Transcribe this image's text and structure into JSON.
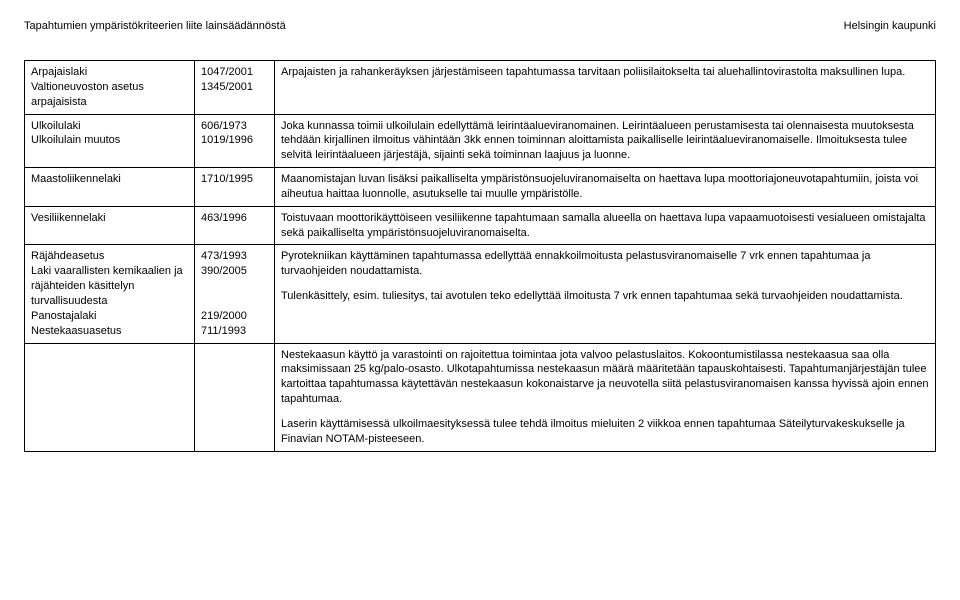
{
  "header": {
    "left": "Tapahtumien ympäristökriteerien liite lainsäädännöstä",
    "right": "Helsingin kaupunki"
  },
  "rows": [
    {
      "col1_lines": [
        "Arpajaislaki",
        "Valtioneuvoston asetus arpajaisista"
      ],
      "col2_lines": [
        "1047/2001",
        "1345/2001"
      ],
      "descs": [
        "Arpajaisten ja rahankeräyksen järjestämiseen tapahtumassa tarvitaan poliisilaitokselta tai aluehallintovirastolta maksullinen lupa."
      ]
    },
    {
      "col1_lines": [
        "Ulkoilulaki",
        "Ulkoilulain muutos"
      ],
      "col2_lines": [
        "606/1973",
        "1019/1996"
      ],
      "descs": [
        "Joka kunnassa toimii ulkoilulain edellyttämä leirintäalueviranomainen. Leirintäalueen perustamisesta tai olennaisesta muutoksesta tehdään kirjallinen ilmoitus vähintään 3kk ennen toiminnan aloittamista paikalliselle leirintäalueviranomaiselle. Ilmoituksesta tulee selvitä leirintäalueen järjestäjä, sijainti sekä toiminnan laajuus ja luonne."
      ]
    },
    {
      "col1_lines": [
        "Maastoliikennelaki"
      ],
      "col2_lines": [
        "1710/1995"
      ],
      "descs": [
        "Maanomistajan luvan lisäksi paikalliselta ympäristönsuojeluviranomaiselta on haettava lupa moottoriajoneuvotapahtumiin, joista voi aiheutua haittaa luonnolle, asutukselle tai muulle ympäristölle."
      ]
    },
    {
      "col1_lines": [
        "Vesiliikennelaki"
      ],
      "col2_lines": [
        "463/1996"
      ],
      "descs": [
        "Toistuvaan moottorikäyttöiseen vesiliikenne tapahtumaan samalla alueella on haettava lupa vapaamuotoisesti vesialueen omistajalta sekä paikalliselta ympäristönsuojeluviranomaiselta."
      ]
    },
    {
      "col1_lines": [
        "Räjähdeasetus",
        "Laki vaarallisten kemikaalien ja räjähteiden käsittelyn turvallisuudesta",
        "Panostajalaki",
        "Nestekaasuasetus"
      ],
      "col2_lines": [
        "473/1993",
        "390/2005",
        "",
        "",
        "219/2000",
        "711/1993"
      ],
      "descs": [
        "Pyrotekniikan käyttäminen tapahtumassa edellyttää ennakkoilmoitusta pelastusviranomaiselle 7 vrk ennen tapahtumaa ja turvaohjeiden noudattamista.",
        "Tulenkäsittely, esim. tuliesitys, tai avotulen teko edellyttää ilmoitusta 7 vrk ennen tapahtumaa sekä turvaohjeiden noudattamista."
      ]
    },
    {
      "col1_lines": [
        ""
      ],
      "col2_lines": [
        ""
      ],
      "descs": [
        "Nestekaasun käyttö ja varastointi on rajoitettua toimintaa jota valvoo pelastuslaitos. Kokoontumistilassa nestekaasua saa olla maksimissaan 25 kg/palo-osasto. Ulkotapahtumissa nestekaasun määrä määritetään tapauskohtaisesti. Tapahtumanjärjestäjän tulee kartoittaa tapahtumassa käytettävän nestekaasun kokonaistarve ja neuvotella siitä pelastusviranomaisen kanssa hyvissä ajoin ennen tapahtumaa.",
        "Laserin käyttämisessä ulkoilmaesityksessä tulee tehdä ilmoitus mieluiten 2 viikkoa ennen tapahtumaa Säteilyturvakeskukselle ja Finavian NOTAM-pisteeseen."
      ]
    }
  ]
}
